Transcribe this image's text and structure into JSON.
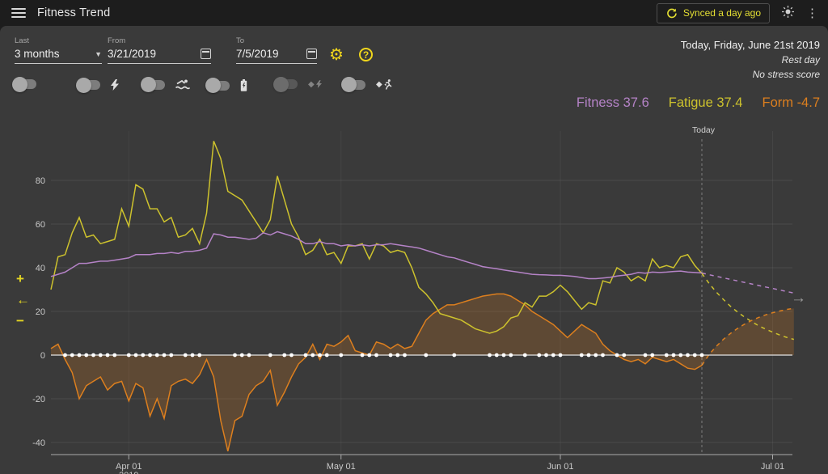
{
  "topbar": {
    "title": "Fitness Trend",
    "synced_label": "Synced a day ago"
  },
  "filters": {
    "last_label": "Last",
    "last_value": "3 months",
    "from_label": "From",
    "from_value": "3/21/2019",
    "to_label": "To",
    "to_value": "7/5/2019"
  },
  "heading": {
    "date": "Today, Friday, June 21st 2019",
    "line2": "Rest day",
    "line3": "No stress score"
  },
  "legend": {
    "fitness": {
      "text": "Fitness 37.6",
      "color": "#b583c7"
    },
    "fatigue": {
      "text": "Fatigue 37.4",
      "color": "#cdc22d"
    },
    "form": {
      "text": "Form -4.7",
      "color": "#dd7f1e"
    }
  },
  "toggles": [
    {
      "icon": "dashes-icon",
      "enabled": true,
      "on": false
    },
    {
      "icon": "bolt-icon",
      "enabled": true,
      "on": false
    },
    {
      "icon": "swimmer-icon",
      "enabled": true,
      "on": false
    },
    {
      "icon": "battery-icon",
      "enabled": true,
      "on": false
    },
    {
      "icon": "estimated-bolt-icon",
      "enabled": false,
      "on": false
    },
    {
      "icon": "estimated-runner-icon",
      "enabled": true,
      "on": false
    }
  ],
  "controls": {
    "zoom_in": "+",
    "pan_left": "←",
    "zoom_out": "−",
    "next": "→"
  },
  "chart_data": {
    "type": "line",
    "title": "Fitness Trend",
    "x_start_date": "3/21/2019",
    "today_date": "6/21/2019",
    "x_end_date": "7/5/2019",
    "today_label": "Today",
    "today_day": 92,
    "y_ticks": [
      80,
      60,
      40,
      20,
      0,
      -20,
      -40
    ],
    "months": [
      {
        "label": "Apr 01",
        "sub": "2019",
        "day": 11
      },
      {
        "label": "May 01",
        "sub": "",
        "day": 41
      },
      {
        "label": "Jun 01",
        "sub": "",
        "day": 72
      },
      {
        "label": "Jul 01",
        "sub": "",
        "day": 102
      }
    ],
    "series": [
      {
        "name": "Fitness",
        "color": "#b583c7",
        "today_value": 37.6,
        "values": [
          36,
          37,
          38,
          40,
          42,
          42,
          42.5,
          43,
          43,
          43.5,
          44,
          44.5,
          46,
          46,
          46,
          46.5,
          46.5,
          47,
          46.5,
          47.5,
          47.5,
          48,
          49,
          55.5,
          55,
          54,
          54,
          53.5,
          53,
          53.5,
          56,
          55,
          56.5,
          55.5,
          54.5,
          53,
          51,
          51,
          52,
          51,
          51,
          50,
          50.5,
          50,
          50.5,
          50,
          50.5,
          50.5,
          51,
          50.5,
          50,
          49.5,
          49,
          48,
          47,
          46,
          45,
          44.5,
          43.5,
          42.5,
          41.5,
          40.5,
          40,
          39.5,
          39,
          38.5,
          38,
          37.5,
          37,
          36.8,
          36.7,
          36.5,
          36.5,
          36.3,
          36,
          35.5,
          35,
          35,
          35.3,
          35.6,
          36.2,
          36.6,
          37,
          37.8,
          37.5,
          38,
          37.8,
          38,
          38.3,
          38.5,
          38,
          37.8,
          37.6
        ],
        "projection": [
          36.8,
          36.1,
          35.4,
          34.7,
          34,
          33.3,
          32.6,
          31.9,
          31.2,
          30.5,
          29.8,
          29.1,
          28.4
        ]
      },
      {
        "name": "Fatigue",
        "color": "#cdc22d",
        "today_value": 37.4,
        "values": [
          30,
          45,
          46,
          56,
          63,
          54,
          55,
          51,
          52,
          53,
          67,
          59,
          78,
          76,
          67,
          67,
          61,
          63,
          54,
          55,
          58,
          51,
          65,
          98,
          90,
          75,
          73,
          71,
          66,
          61,
          56,
          62,
          82,
          71,
          60,
          54,
          46,
          48,
          53,
          46,
          47,
          42,
          50,
          50,
          51,
          44,
          51,
          50,
          47,
          48,
          47,
          40,
          31,
          28,
          24,
          19,
          18,
          17,
          16,
          14,
          12,
          11,
          10,
          11,
          13,
          17,
          18,
          24,
          22,
          27,
          27,
          29,
          32,
          29,
          25,
          21,
          24,
          23,
          34,
          33,
          40,
          38,
          34,
          36,
          34,
          44,
          40,
          41,
          40,
          45,
          46,
          41,
          37.4
        ],
        "projection": [
          32.9,
          29,
          25.6,
          22.5,
          19.8,
          17.5,
          15.4,
          13.5,
          11.9,
          10.5,
          9.2,
          8.1,
          7.2
        ]
      },
      {
        "name": "Form",
        "color": "#dd7f1e",
        "fill": "rgba(221,127,30,0.22)",
        "today_value": -4.7,
        "values": [
          3,
          5,
          -2,
          -8,
          -20,
          -14,
          -12,
          -10,
          -16,
          -13,
          -12,
          -21,
          -13,
          -15,
          -28,
          -20,
          -29,
          -14,
          -12,
          -11,
          -13,
          -9,
          -2,
          -10,
          -30,
          -44,
          -30,
          -28,
          -18,
          -14,
          -12,
          -7,
          -23,
          -17,
          -10,
          -4,
          -1,
          5,
          -2,
          5,
          4,
          6,
          9,
          2,
          1,
          0,
          6,
          5,
          3,
          5,
          3,
          4,
          10,
          16,
          19,
          21,
          23,
          23,
          24,
          25,
          26,
          27,
          27.5,
          28,
          28,
          27,
          25,
          23,
          20,
          18,
          16,
          14,
          11,
          8,
          11,
          14,
          12,
          10,
          5,
          2,
          0,
          -2,
          -3,
          -2,
          -4,
          -1,
          -2,
          -3,
          -2,
          -4,
          -6,
          -6.5,
          -4.7
        ],
        "projection": [
          0.2,
          3.9,
          7.1,
          9.8,
          12.1,
          14.1,
          15.8,
          17.2,
          18.4,
          19.4,
          20.2,
          20.9,
          21.4
        ]
      }
    ],
    "rest_day_dots": [
      2,
      3,
      4,
      5,
      6,
      7,
      8,
      9,
      11,
      12,
      13,
      14,
      15,
      16,
      17,
      19,
      20,
      21,
      26,
      27,
      28,
      31,
      33,
      34,
      36,
      37,
      38,
      39,
      41,
      44,
      45,
      46,
      48,
      49,
      50,
      53,
      57,
      62,
      63,
      64,
      65,
      67,
      69,
      70,
      71,
      72,
      75,
      76,
      77,
      78,
      80,
      81,
      84,
      85,
      87,
      88,
      89,
      90,
      91,
      92
    ],
    "grid": true,
    "legend_position": "top-right",
    "ylim": [
      -48,
      100
    ],
    "colors": {
      "grid": "rgba(255,255,255,0.08)",
      "zero_line": "#e4e4e4",
      "axis": "#a9a9a9",
      "tick_text": "#c9c9c9",
      "today_line": "rgba(255,255,255,0.35)",
      "dots": "#ffffff"
    }
  }
}
